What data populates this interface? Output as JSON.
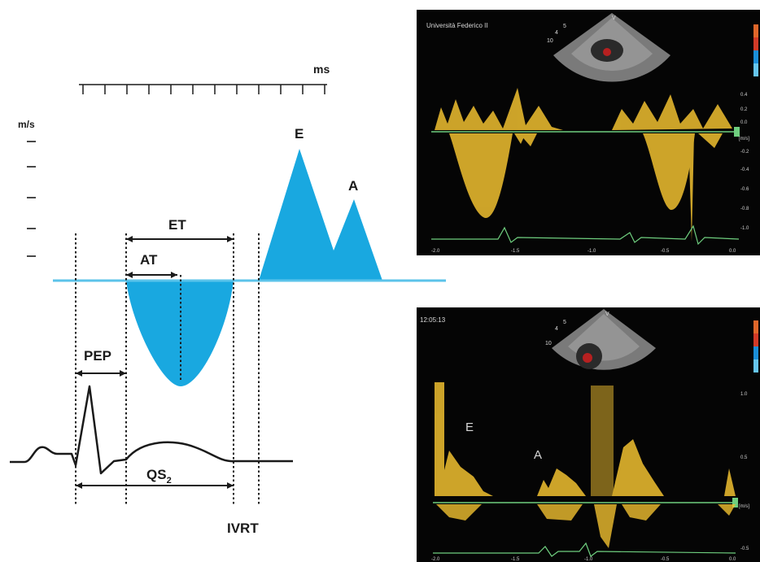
{
  "diagram": {
    "unit_ms": "ms",
    "unit_ms_label": "m/s",
    "peak_e": "E",
    "peak_a": "A",
    "et": "ET",
    "at": "AT",
    "pep": "PEP",
    "qs2": "QS",
    "qs2_sub": "2",
    "ivrt": "IVRT"
  },
  "panels": {
    "top": {
      "caption": "Università Federico II",
      "probe_marks": [
        "4",
        "5",
        "10",
        "V"
      ],
      "scale_right": [
        "0.4",
        "0.2",
        "0.0",
        "-0.2",
        "-0.4",
        "-0.6",
        "-0.8",
        "-1.0"
      ],
      "unit": "[m/s]",
      "time_ticks": [
        "-2.0",
        "-1.5",
        "-1.0",
        "-0.5",
        "0.0"
      ]
    },
    "bottom": {
      "caption": "12:05:13",
      "probe_marks": [
        "4",
        "5",
        "10",
        "V"
      ],
      "peak_e": "E",
      "peak_a": "A",
      "scale_right": [
        "1.0",
        "0.5",
        "-0.5"
      ],
      "unit": "[m/s]",
      "time_ticks": [
        "-2.0",
        "-1.5",
        "-1.0",
        "-0.5",
        "0.0"
      ]
    }
  },
  "colors": {
    "flow_fill": "#19a8e0",
    "baseline": "#5bc3ea",
    "ink": "#1a1a1a",
    "doppler": "#f0c030",
    "doppler_baseline": "#6fcf7f"
  }
}
